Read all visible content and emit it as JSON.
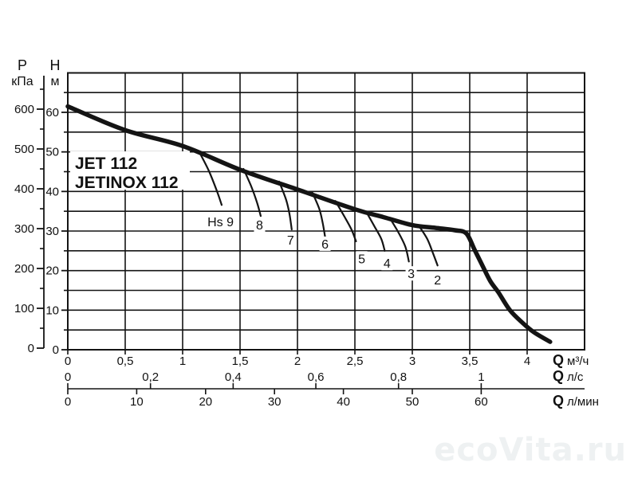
{
  "watermark": {
    "text": "ecoVita.ru",
    "color": "#eef1f2"
  },
  "chart_data": {
    "type": "line",
    "title": "JET 112 / JETINOX 112 pump performance curve",
    "models": [
      "JET 112",
      "JETINOX 112"
    ],
    "grid": {
      "on": true,
      "x_step_m3h": 0.5,
      "y_step_m": 5
    },
    "y_axes": [
      {
        "id": "pressure",
        "quantity": "P",
        "unit": "кПа",
        "range": [
          0,
          650
        ],
        "major_step": 100,
        "minor_step": 50,
        "tick_labels": [
          "0",
          "100",
          "200",
          "300",
          "400",
          "500",
          "600"
        ],
        "tick_values": [
          0,
          100,
          200,
          300,
          400,
          500,
          600
        ]
      },
      {
        "id": "head",
        "quantity": "H",
        "unit": "м",
        "range": [
          0,
          70
        ],
        "major_step": 10,
        "minor_step": 5,
        "tick_labels": [
          "0",
          "10",
          "20",
          "30",
          "40",
          "50",
          "60"
        ],
        "tick_values": [
          0,
          10,
          20,
          30,
          40,
          50,
          60
        ]
      }
    ],
    "x_axes": [
      {
        "id": "flow_m3h",
        "quantity": "Q",
        "unit": "м³/ч",
        "range": [
          0,
          4.5
        ],
        "tick_labels": [
          "0",
          "0,5",
          "1",
          "1,5",
          "2",
          "2,5",
          "3",
          "3,5",
          "4"
        ],
        "tick_values": [
          0,
          0.5,
          1,
          1.5,
          2,
          2.5,
          3,
          3.5,
          4
        ],
        "to_m3h_factor": 1
      },
      {
        "id": "flow_ls",
        "quantity": "Q",
        "unit": "л/с",
        "range": [
          0,
          1.25
        ],
        "tick_labels": [
          "0",
          "0,2",
          "0,4",
          "0,6",
          "0,8",
          "1"
        ],
        "tick_values": [
          0,
          0.2,
          0.4,
          0.6,
          0.8,
          1
        ],
        "to_m3h_factor": 3.6
      },
      {
        "id": "flow_lmin",
        "quantity": "Q",
        "unit": "л/мин",
        "range": [
          0,
          75
        ],
        "tick_labels": [
          "0",
          "10",
          "20",
          "30",
          "40",
          "50",
          "60"
        ],
        "tick_values": [
          0,
          10,
          20,
          30,
          40,
          50,
          60
        ],
        "to_m3h_factor": 0.06
      }
    ],
    "main_curve": {
      "name": "H(Q) characteristic",
      "x_unit": "м³/ч",
      "y_unit": "м",
      "points": [
        [
          0,
          61.5
        ],
        [
          0.5,
          55.5
        ],
        [
          1.0,
          51.5
        ],
        [
          1.5,
          45.5
        ],
        [
          2.0,
          40.5
        ],
        [
          2.5,
          35.5
        ],
        [
          2.75,
          33.5
        ],
        [
          3.0,
          31.5
        ],
        [
          3.2,
          30.8
        ],
        [
          3.37,
          30.2
        ],
        [
          3.47,
          29.4
        ],
        [
          3.54,
          25.4
        ],
        [
          3.61,
          21.3
        ],
        [
          3.68,
          17.3
        ],
        [
          3.75,
          14.5
        ],
        [
          3.85,
          10.0
        ],
        [
          3.96,
          6.8
        ],
        [
          4.06,
          4.4
        ],
        [
          4.2,
          2.0
        ]
      ]
    },
    "hs_curves": [
      {
        "label": "Hs 9",
        "hs_m": 9,
        "points": [
          [
            1.15,
            49.7
          ],
          [
            1.23,
            45.1
          ],
          [
            1.3,
            40.0
          ],
          [
            1.34,
            36.6
          ]
        ],
        "label_pos": [
          1.33,
          32.4
        ]
      },
      {
        "label": "8",
        "hs_m": 8,
        "points": [
          [
            1.53,
            45.7
          ],
          [
            1.6,
            41.1
          ],
          [
            1.65,
            37.0
          ],
          [
            1.68,
            33.8
          ]
        ],
        "label_pos": [
          1.67,
          31.6
        ]
      },
      {
        "label": "7",
        "hs_m": 7,
        "points": [
          [
            1.84,
            42.5
          ],
          [
            1.9,
            38.0
          ],
          [
            1.93,
            34.4
          ],
          [
            1.95,
            30.4
          ]
        ],
        "label_pos": [
          1.94,
          27.8
        ]
      },
      {
        "label": "6",
        "hs_m": 6,
        "points": [
          [
            2.13,
            39.7
          ],
          [
            2.19,
            35.6
          ],
          [
            2.22,
            32.0
          ],
          [
            2.24,
            28.6
          ]
        ],
        "label_pos": [
          2.24,
          26.8
        ]
      },
      {
        "label": "5",
        "hs_m": 5,
        "points": [
          [
            2.33,
            37.6
          ],
          [
            2.41,
            33.6
          ],
          [
            2.47,
            30.4
          ],
          [
            2.51,
            27.4
          ]
        ],
        "label_pos": [
          2.56,
          23.1
        ]
      },
      {
        "label": "4",
        "hs_m": 4,
        "points": [
          [
            2.6,
            34.8
          ],
          [
            2.67,
            31.2
          ],
          [
            2.73,
            28.0
          ],
          [
            2.76,
            25.0
          ]
        ],
        "label_pos": [
          2.78,
          21.9
        ]
      },
      {
        "label": "3",
        "hs_m": 3,
        "points": [
          [
            2.81,
            33.0
          ],
          [
            2.88,
            29.6
          ],
          [
            2.94,
            26.0
          ],
          [
            2.97,
            22.3
          ]
        ],
        "label_pos": [
          2.99,
          19.3
        ]
      },
      {
        "label": "2",
        "hs_m": 2,
        "points": [
          [
            3.06,
            31.2
          ],
          [
            3.13,
            28.0
          ],
          [
            3.18,
            24.4
          ],
          [
            3.22,
            21.3
          ]
        ],
        "label_pos": [
          3.22,
          17.7
        ]
      }
    ],
    "line_color": "#141414"
  }
}
